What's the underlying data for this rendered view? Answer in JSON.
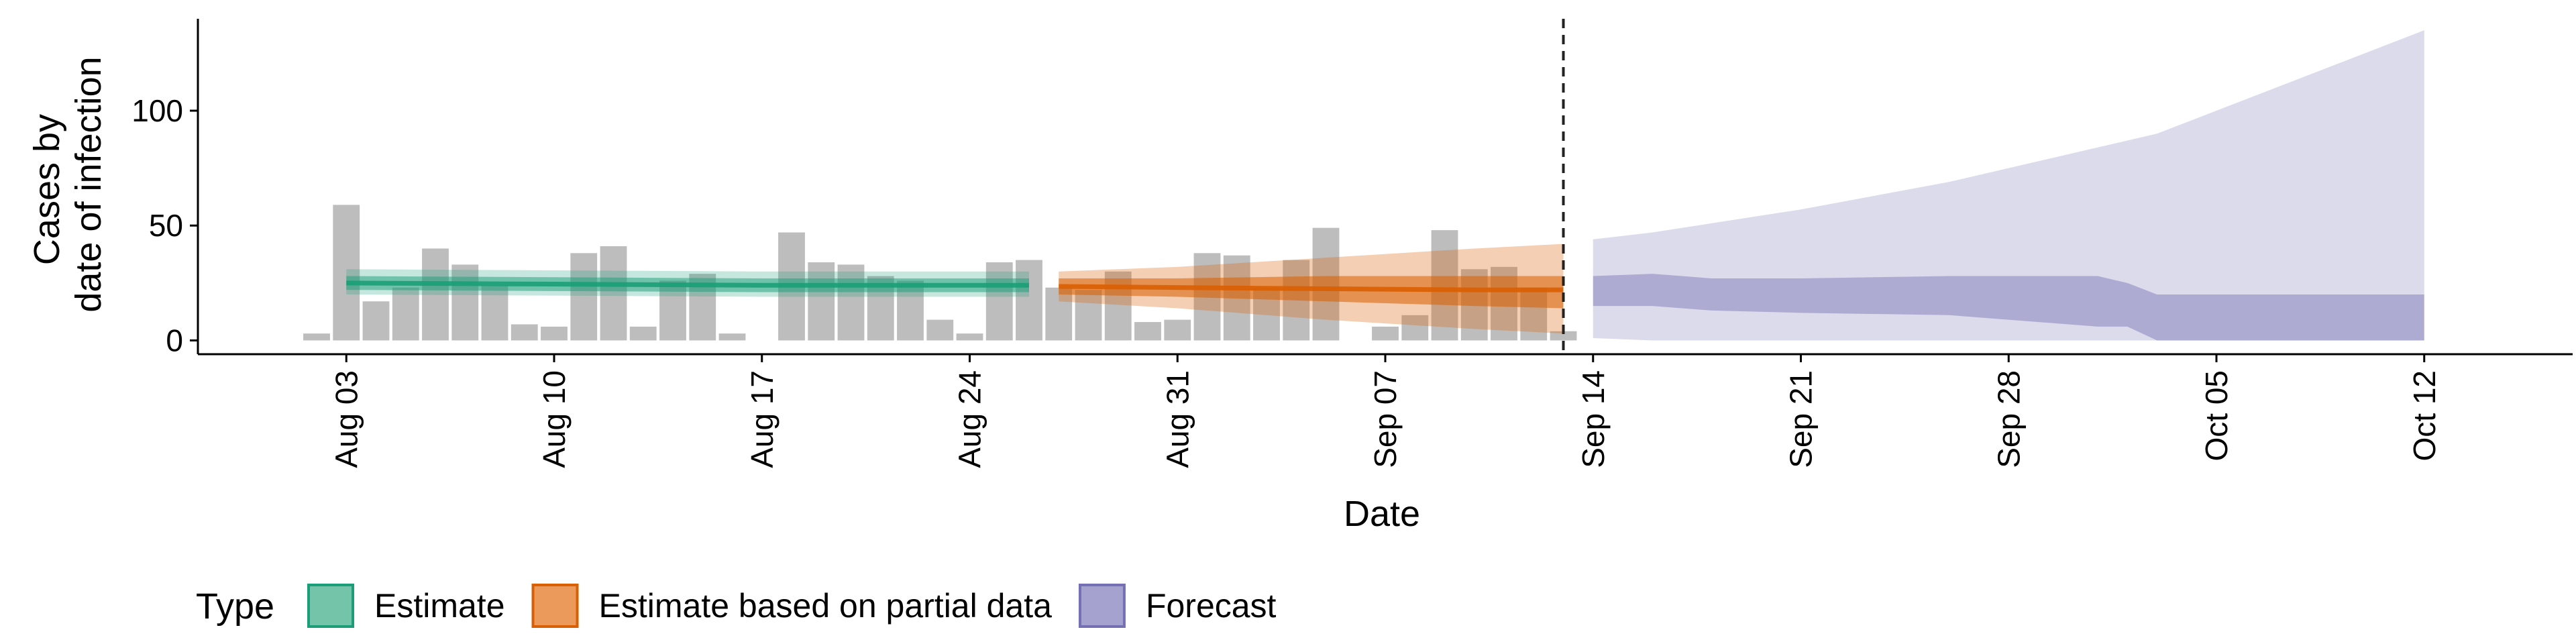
{
  "chart_data": {
    "type": "bar",
    "xlabel": "Date",
    "ylabel_lines": [
      "Cases by",
      "date of infection"
    ],
    "ylim": [
      -6,
      140
    ],
    "yticks": [
      0,
      50,
      100
    ],
    "xlim": [
      "2020-07-29",
      "2020-10-17"
    ],
    "xticks": [
      {
        "date": "2020-08-03",
        "label": "Aug 03"
      },
      {
        "date": "2020-08-10",
        "label": "Aug 10"
      },
      {
        "date": "2020-08-17",
        "label": "Aug 17"
      },
      {
        "date": "2020-08-24",
        "label": "Aug 24"
      },
      {
        "date": "2020-08-31",
        "label": "Aug 31"
      },
      {
        "date": "2020-09-07",
        "label": "Sep 07"
      },
      {
        "date": "2020-09-14",
        "label": "Sep 14"
      },
      {
        "date": "2020-09-21",
        "label": "Sep 21"
      },
      {
        "date": "2020-09-28",
        "label": "Sep 28"
      },
      {
        "date": "2020-10-05",
        "label": "Oct 05"
      },
      {
        "date": "2020-10-12",
        "label": "Oct 12"
      }
    ],
    "bar_start_date": "2020-08-02",
    "observed_cases": [
      3,
      59,
      17,
      23,
      40,
      33,
      24,
      7,
      6,
      38,
      41,
      6,
      26,
      29,
      3,
      0,
      47,
      34,
      33,
      28,
      26,
      9,
      3,
      34,
      35,
      23,
      22,
      30,
      8,
      9,
      38,
      37,
      23,
      35,
      49,
      0,
      6,
      11,
      48,
      31,
      32,
      23,
      4
    ],
    "forecast_date": "2020-09-13",
    "bands": [
      {
        "type": "Estimate",
        "dates": [
          "2020-08-03",
          "2020-08-10",
          "2020-08-17",
          "2020-08-24",
          "2020-08-26"
        ],
        "median": [
          25,
          24.5,
          24,
          24,
          24
        ],
        "inner": [
          [
            22,
            28
          ],
          [
            21.5,
            27.5
          ],
          [
            21,
            27
          ],
          [
            21,
            27
          ],
          [
            21,
            27
          ]
        ],
        "outer": [
          [
            20,
            31
          ],
          [
            19.5,
            30.5
          ],
          [
            19,
            30
          ],
          [
            19,
            30
          ],
          [
            19,
            30
          ]
        ]
      },
      {
        "type": "Estimate based on partial data",
        "dates": [
          "2020-08-27",
          "2020-08-31",
          "2020-09-05",
          "2020-09-10",
          "2020-09-13"
        ],
        "median": [
          23.5,
          23,
          22.5,
          22,
          22
        ],
        "inner": [
          [
            20,
            27
          ],
          [
            19,
            27
          ],
          [
            17,
            28
          ],
          [
            15,
            28
          ],
          [
            14,
            28
          ]
        ],
        "outer": [
          [
            17,
            30
          ],
          [
            14,
            32
          ],
          [
            9,
            36
          ],
          [
            5,
            40
          ],
          [
            3,
            42
          ]
        ]
      },
      {
        "type": "Forecast",
        "dates": [
          "2020-09-14",
          "2020-09-16",
          "2020-09-18",
          "2020-09-21",
          "2020-09-26",
          "2020-10-01",
          "2020-10-02",
          "2020-10-03",
          "2020-10-12"
        ],
        "inner": [
          [
            15,
            28
          ],
          [
            15,
            29
          ],
          [
            13,
            27
          ],
          [
            12,
            27
          ],
          [
            11,
            28
          ],
          [
            6,
            28
          ],
          [
            6,
            25
          ],
          [
            0,
            20
          ],
          [
            0,
            20
          ]
        ],
        "outer": [
          [
            1,
            44
          ],
          [
            0,
            47
          ],
          [
            0,
            51
          ],
          [
            0,
            57
          ],
          [
            0,
            69
          ],
          [
            0,
            84
          ],
          [
            0,
            87
          ],
          [
            0,
            90
          ],
          [
            0,
            135
          ]
        ]
      }
    ],
    "legend": {
      "title": "Type",
      "position": "bottom",
      "entries": [
        {
          "label": "Estimate",
          "fill": "#73c4a8",
          "stroke": "#1b9e77"
        },
        {
          "label": "Estimate based on partial data",
          "fill": "#ec9a5b",
          "stroke": "#d95f02"
        },
        {
          "label": "Forecast",
          "fill": "#a6a2d0",
          "stroke": "#7570b3"
        }
      ]
    },
    "colors": {
      "bars": "#bdbdbd",
      "Estimate": "#1b9e77",
      "Estimate based on partial data": "#d95f02",
      "Forecast": "#7570b3"
    },
    "grid": false
  }
}
